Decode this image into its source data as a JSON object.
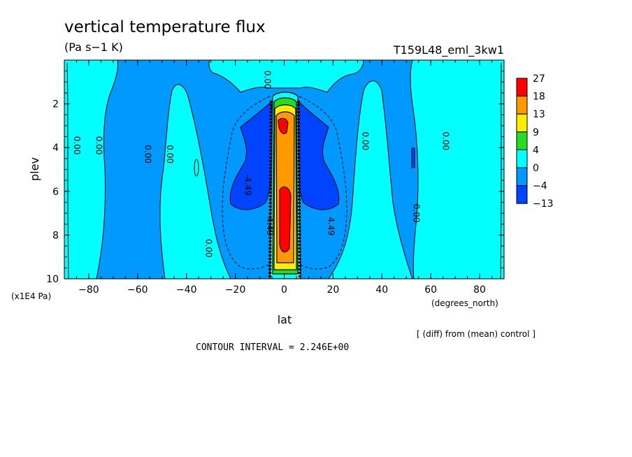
{
  "header": {
    "title": "vertical temperature flux",
    "units": "(Pa s−1 K)",
    "run_id": "T159L48_eml_3kw1"
  },
  "footer": {
    "diff_note": "[ (diff) from (mean) control ]",
    "contour_interval": "CONTOUR INTERVAL = 2.246E+00"
  },
  "chart_data": {
    "type": "heatmap",
    "title": "vertical temperature flux",
    "subtitle": "(Pa s−1 K)",
    "xlabel": "lat",
    "xunits": "(degrees_north)",
    "ylabel": "plev",
    "yunits": "(x1E4 Pa)",
    "xlim": [
      -90,
      90
    ],
    "ylim": [
      10,
      0
    ],
    "x_ticks": [
      -80,
      -60,
      -40,
      -20,
      0,
      20,
      40,
      60,
      80
    ],
    "y_ticks": [
      2,
      4,
      6,
      8,
      10
    ],
    "colorbar": {
      "levels": [
        "27",
        "18",
        "13",
        "9",
        "4",
        "0",
        "−4",
        "−13"
      ],
      "colors": [
        "#ff0000",
        "#ff9900",
        "#ffee00",
        "#22dd22",
        "#00ffff",
        "#0099ff",
        "#0044ff"
      ]
    },
    "contour_labels": [
      {
        "text": "0.00",
        "x": -86,
        "y": 3.9
      },
      {
        "text": "0.00",
        "x": -77,
        "y": 3.9
      },
      {
        "text": "0.00",
        "x": -57,
        "y": 4.3
      },
      {
        "text": "0.00",
        "x": -48,
        "y": 4.3
      },
      {
        "text": "0.00",
        "x": -32,
        "y": 8.6
      },
      {
        "text": "0.00",
        "x": -8,
        "y": 0.9
      },
      {
        "text": "-4.49",
        "x": -16,
        "y": 5.7
      },
      {
        "text": "4.49",
        "x": -7,
        "y": 7.6
      },
      {
        "text": "4.49",
        "x": 18,
        "y": 7.6
      },
      {
        "text": "0.00",
        "x": 32,
        "y": 3.7
      },
      {
        "text": "0.00",
        "x": 53,
        "y": 7.0
      },
      {
        "text": "0.00",
        "x": 65,
        "y": 3.7
      }
    ],
    "contour_interval": 2.246,
    "note": "[ (diff) from (mean) control ]"
  }
}
